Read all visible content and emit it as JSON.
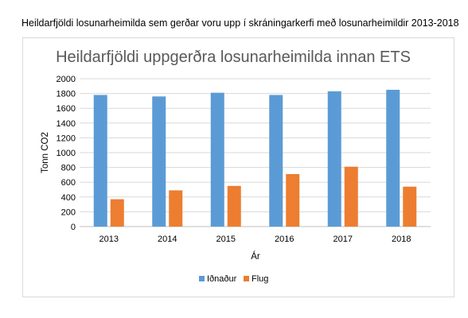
{
  "caption": "Heildarfjöldi losunarheimilda sem gerðar voru upp í skráningarkerfi með losunarheimildir 2013-2018",
  "chart_data": {
    "type": "bar",
    "title": "Heildarfjöldi uppgerðra losunarheimilda innan ETS",
    "xlabel": "Ár",
    "ylabel": "Tonn CO2",
    "categories": [
      "2013",
      "2014",
      "2015",
      "2016",
      "2017",
      "2018"
    ],
    "ylim": [
      0,
      2000
    ],
    "yticks": [
      0,
      200,
      400,
      600,
      800,
      1000,
      1200,
      1400,
      1600,
      1800,
      2000
    ],
    "grid": true,
    "legend": "bottom",
    "series": [
      {
        "name": "Iðnaður",
        "color": "#5b9bd5",
        "values": [
          1780,
          1760,
          1810,
          1780,
          1830,
          1850
        ]
      },
      {
        "name": "Flug",
        "color": "#ed7d31",
        "values": [
          370,
          490,
          550,
          710,
          810,
          540
        ]
      }
    ]
  }
}
